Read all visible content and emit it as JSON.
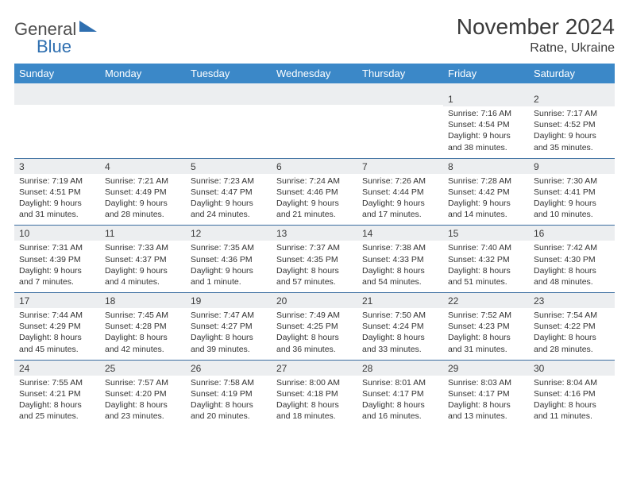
{
  "branding": {
    "word1": "General",
    "word2": "Blue",
    "word1_color": "#4d4d4d",
    "word2_color": "#2f6fb0",
    "triangle_color": "#2f6fb0"
  },
  "title": {
    "month_year": "November 2024",
    "location": "Ratne, Ukraine",
    "month_fontsize": 28,
    "location_fontsize": 16,
    "text_color": "#3a3a3a"
  },
  "calendar": {
    "header_bg": "#3b88c8",
    "header_text_color": "#ffffff",
    "daynum_bg": "#eceef0",
    "border_color": "#3b6ea0",
    "body_text_color": "#333333",
    "dow": [
      "Sunday",
      "Monday",
      "Tuesday",
      "Wednesday",
      "Thursday",
      "Friday",
      "Saturday"
    ],
    "weeks": [
      [
        null,
        null,
        null,
        null,
        null,
        {
          "n": "1",
          "sunrise": "7:16 AM",
          "sunset": "4:54 PM",
          "daylight": "9 hours and 38 minutes."
        },
        {
          "n": "2",
          "sunrise": "7:17 AM",
          "sunset": "4:52 PM",
          "daylight": "9 hours and 35 minutes."
        }
      ],
      [
        {
          "n": "3",
          "sunrise": "7:19 AM",
          "sunset": "4:51 PM",
          "daylight": "9 hours and 31 minutes."
        },
        {
          "n": "4",
          "sunrise": "7:21 AM",
          "sunset": "4:49 PM",
          "daylight": "9 hours and 28 minutes."
        },
        {
          "n": "5",
          "sunrise": "7:23 AM",
          "sunset": "4:47 PM",
          "daylight": "9 hours and 24 minutes."
        },
        {
          "n": "6",
          "sunrise": "7:24 AM",
          "sunset": "4:46 PM",
          "daylight": "9 hours and 21 minutes."
        },
        {
          "n": "7",
          "sunrise": "7:26 AM",
          "sunset": "4:44 PM",
          "daylight": "9 hours and 17 minutes."
        },
        {
          "n": "8",
          "sunrise": "7:28 AM",
          "sunset": "4:42 PM",
          "daylight": "9 hours and 14 minutes."
        },
        {
          "n": "9",
          "sunrise": "7:30 AM",
          "sunset": "4:41 PM",
          "daylight": "9 hours and 10 minutes."
        }
      ],
      [
        {
          "n": "10",
          "sunrise": "7:31 AM",
          "sunset": "4:39 PM",
          "daylight": "9 hours and 7 minutes."
        },
        {
          "n": "11",
          "sunrise": "7:33 AM",
          "sunset": "4:37 PM",
          "daylight": "9 hours and 4 minutes."
        },
        {
          "n": "12",
          "sunrise": "7:35 AM",
          "sunset": "4:36 PM",
          "daylight": "9 hours and 1 minute."
        },
        {
          "n": "13",
          "sunrise": "7:37 AM",
          "sunset": "4:35 PM",
          "daylight": "8 hours and 57 minutes."
        },
        {
          "n": "14",
          "sunrise": "7:38 AM",
          "sunset": "4:33 PM",
          "daylight": "8 hours and 54 minutes."
        },
        {
          "n": "15",
          "sunrise": "7:40 AM",
          "sunset": "4:32 PM",
          "daylight": "8 hours and 51 minutes."
        },
        {
          "n": "16",
          "sunrise": "7:42 AM",
          "sunset": "4:30 PM",
          "daylight": "8 hours and 48 minutes."
        }
      ],
      [
        {
          "n": "17",
          "sunrise": "7:44 AM",
          "sunset": "4:29 PM",
          "daylight": "8 hours and 45 minutes."
        },
        {
          "n": "18",
          "sunrise": "7:45 AM",
          "sunset": "4:28 PM",
          "daylight": "8 hours and 42 minutes."
        },
        {
          "n": "19",
          "sunrise": "7:47 AM",
          "sunset": "4:27 PM",
          "daylight": "8 hours and 39 minutes."
        },
        {
          "n": "20",
          "sunrise": "7:49 AM",
          "sunset": "4:25 PM",
          "daylight": "8 hours and 36 minutes."
        },
        {
          "n": "21",
          "sunrise": "7:50 AM",
          "sunset": "4:24 PM",
          "daylight": "8 hours and 33 minutes."
        },
        {
          "n": "22",
          "sunrise": "7:52 AM",
          "sunset": "4:23 PM",
          "daylight": "8 hours and 31 minutes."
        },
        {
          "n": "23",
          "sunrise": "7:54 AM",
          "sunset": "4:22 PM",
          "daylight": "8 hours and 28 minutes."
        }
      ],
      [
        {
          "n": "24",
          "sunrise": "7:55 AM",
          "sunset": "4:21 PM",
          "daylight": "8 hours and 25 minutes."
        },
        {
          "n": "25",
          "sunrise": "7:57 AM",
          "sunset": "4:20 PM",
          "daylight": "8 hours and 23 minutes."
        },
        {
          "n": "26",
          "sunrise": "7:58 AM",
          "sunset": "4:19 PM",
          "daylight": "8 hours and 20 minutes."
        },
        {
          "n": "27",
          "sunrise": "8:00 AM",
          "sunset": "4:18 PM",
          "daylight": "8 hours and 18 minutes."
        },
        {
          "n": "28",
          "sunrise": "8:01 AM",
          "sunset": "4:17 PM",
          "daylight": "8 hours and 16 minutes."
        },
        {
          "n": "29",
          "sunrise": "8:03 AM",
          "sunset": "4:17 PM",
          "daylight": "8 hours and 13 minutes."
        },
        {
          "n": "30",
          "sunrise": "8:04 AM",
          "sunset": "4:16 PM",
          "daylight": "8 hours and 11 minutes."
        }
      ]
    ],
    "labels": {
      "sunrise": "Sunrise:",
      "sunset": "Sunset:",
      "daylight": "Daylight:"
    }
  }
}
